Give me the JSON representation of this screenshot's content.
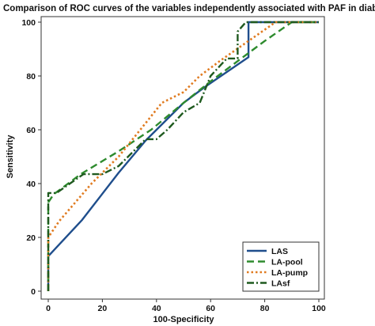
{
  "chart_data": {
    "type": "line",
    "title": "Comparison of ROC curves of the variables independently associated with PAF in diabetic patients",
    "xlabel": "100-Specificity",
    "ylabel": "Sensitivity",
    "xlim": [
      0,
      100
    ],
    "ylim": [
      0,
      100
    ],
    "x_ticks": [
      0,
      20,
      40,
      60,
      80,
      100
    ],
    "y_ticks": [
      0,
      20,
      40,
      60,
      80,
      100
    ],
    "grid": false,
    "legend_position": "bottom-right",
    "series": [
      {
        "name": "LAS",
        "color": "#1f4e8c",
        "style": "solid",
        "points": [
          [
            0,
            0
          ],
          [
            0,
            13
          ],
          [
            12.5,
            26.5
          ],
          [
            26,
            44
          ],
          [
            36,
            56
          ],
          [
            40,
            60
          ],
          [
            50,
            70
          ],
          [
            58,
            76
          ],
          [
            74,
            87
          ],
          [
            74,
            100
          ],
          [
            100,
            100
          ]
        ]
      },
      {
        "name": "LA-pool",
        "color": "#2e8b2e",
        "style": "dashed",
        "points": [
          [
            0,
            0
          ],
          [
            0,
            33
          ],
          [
            2,
            36
          ],
          [
            12,
            43.5
          ],
          [
            26,
            52
          ],
          [
            38,
            60
          ],
          [
            50,
            70
          ],
          [
            60,
            78
          ],
          [
            72,
            87
          ],
          [
            80,
            93
          ],
          [
            90,
            100
          ],
          [
            100,
            100
          ]
        ]
      },
      {
        "name": "LA-pump",
        "color": "#e07b20",
        "style": "dotted",
        "points": [
          [
            0,
            0
          ],
          [
            0,
            20
          ],
          [
            4,
            26
          ],
          [
            16,
            40
          ],
          [
            26,
            50
          ],
          [
            34,
            60
          ],
          [
            42,
            70
          ],
          [
            50,
            74
          ],
          [
            56,
            80
          ],
          [
            64,
            86
          ],
          [
            74,
            93
          ],
          [
            84,
            100
          ],
          [
            100,
            100
          ]
        ]
      },
      {
        "name": "LAsf",
        "color": "#1f5a1f",
        "style": "dashdot",
        "points": [
          [
            0,
            0
          ],
          [
            0,
            36.5
          ],
          [
            3,
            36.5
          ],
          [
            13,
            43.5
          ],
          [
            20,
            43.5
          ],
          [
            26,
            46.5
          ],
          [
            36,
            56.5
          ],
          [
            40,
            56.5
          ],
          [
            44,
            60
          ],
          [
            50,
            66.5
          ],
          [
            56,
            70
          ],
          [
            60,
            80
          ],
          [
            66,
            86.5
          ],
          [
            70,
            86.5
          ],
          [
            70,
            96.5
          ],
          [
            73,
            100
          ],
          [
            100,
            100
          ]
        ]
      }
    ]
  }
}
